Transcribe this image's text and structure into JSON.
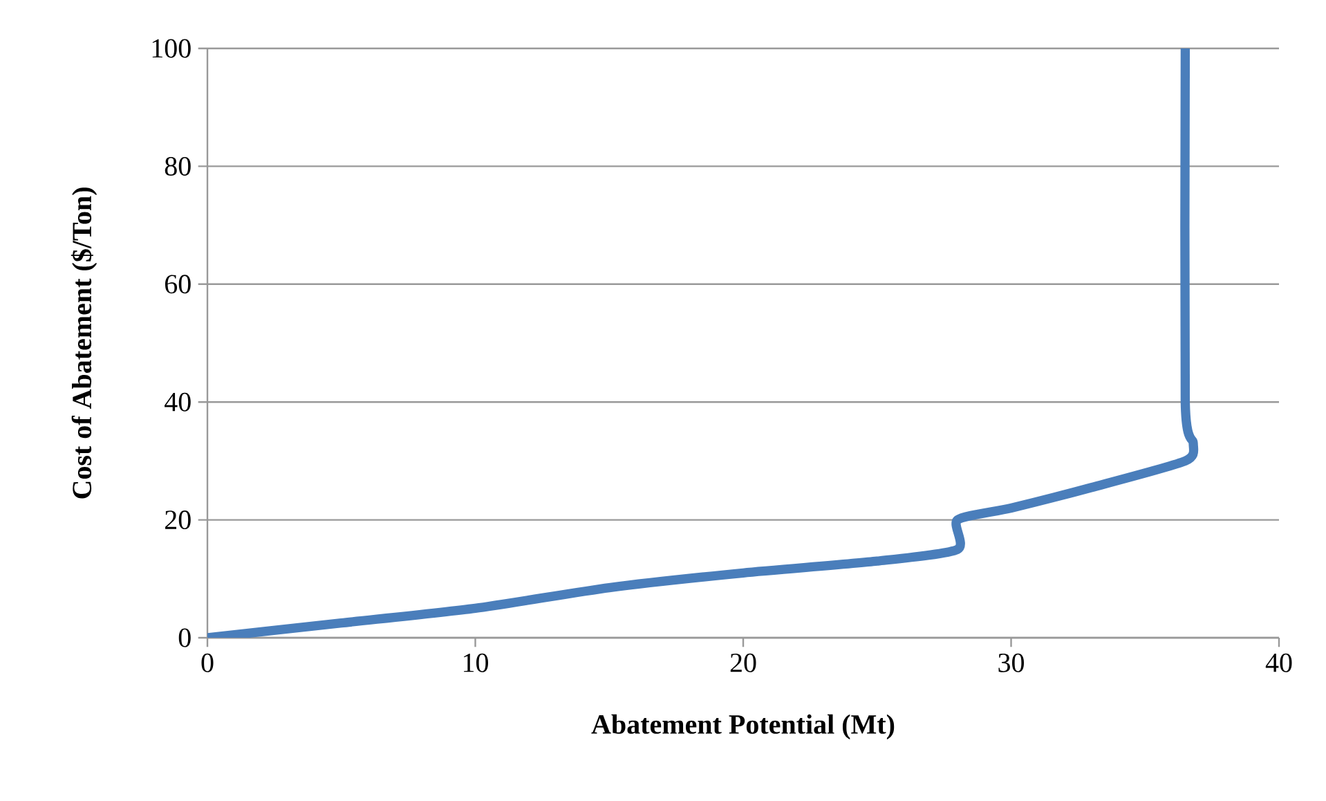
{
  "chart_data": {
    "type": "line",
    "xlabel": "Abatement Potential (Mt)",
    "ylabel": "Cost of Abatement ($/Ton)",
    "x": [
      0,
      5,
      10,
      15,
      20,
      25,
      28,
      28,
      30,
      33,
      36.5,
      36.8,
      36.5,
      36.5
    ],
    "series": [
      {
        "color": "#4a7ebb",
        "values": [
          0,
          2.5,
          5,
          8.5,
          11,
          13,
          15,
          20,
          22,
          25.5,
          30,
          33,
          40,
          100
        ]
      }
    ],
    "xlim": [
      0,
      40
    ],
    "ylim": [
      0,
      100
    ],
    "xticks": [
      0,
      10,
      20,
      30,
      40
    ],
    "yticks": [
      0,
      20,
      40,
      60,
      80,
      100
    ],
    "grid": "y",
    "marker": "none",
    "line_style": "solid"
  }
}
